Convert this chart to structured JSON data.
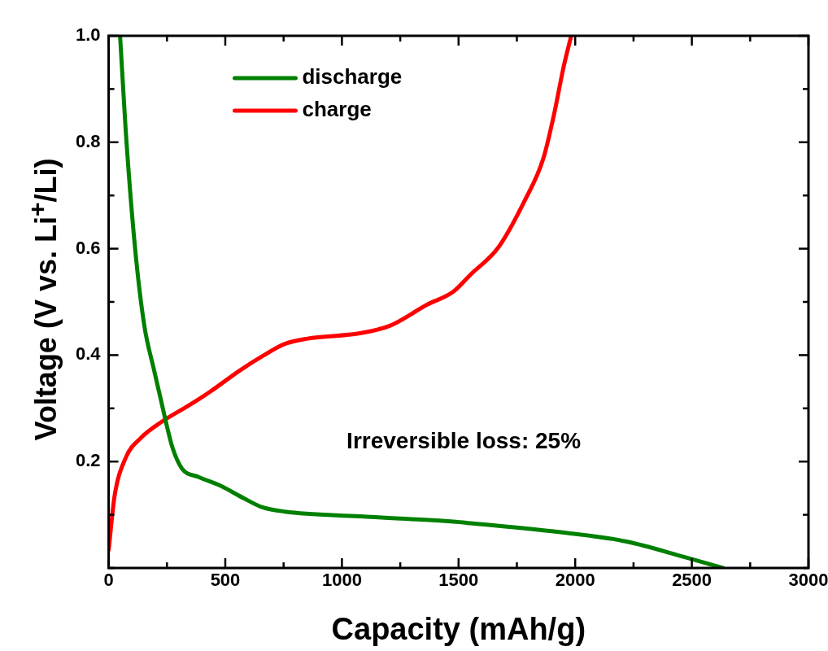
{
  "chart_data": {
    "type": "line",
    "xlabel": "Capacity (mAh/g)",
    "ylabel": "Voltage (V vs. Li$^{+}$/Li)",
    "xlim": [
      0,
      3000
    ],
    "xticks": [
      0,
      {
        "value": 250,
        "label": null
      },
      500,
      {
        "value": 750,
        "label": null
      },
      1000,
      {
        "value": 1250,
        "label": null
      },
      1500,
      {
        "value": 1750,
        "label": null
      },
      2000,
      {
        "value": 2250,
        "label": null
      },
      2500,
      {
        "value": 2750,
        "label": null
      },
      3000
    ],
    "ylim": [
      0,
      1
    ],
    "yticks": [
      {
        "value": 0,
        "label": null
      },
      {
        "value": 0.1,
        "label": null
      },
      0.2,
      {
        "value": 0.3,
        "label": null
      },
      0.4,
      {
        "value": 0.5,
        "label": null
      },
      0.6,
      {
        "value": 0.7,
        "label": null
      },
      0.8,
      {
        "value": 0.9,
        "label": null
      },
      {
        "value": 1,
        "label": "1.0"
      }
    ],
    "grid": false,
    "legend": "top left",
    "marker": "none",
    "line_style": "solid",
    "annotations": [
      "Irreversible loss: 25%"
    ],
    "series": [
      {
        "name": "discharge",
        "color": "#008000",
        "x": [
          49,
          73,
          113,
          153,
          193,
          225,
          249,
          273,
          314,
          386,
          482,
          579,
          659,
          755,
          1077,
          1477,
          1553,
          1959,
          2216,
          2473,
          2634
        ],
        "values": [
          1.0,
          0.823,
          0.602,
          0.455,
          0.375,
          0.314,
          0.268,
          0.227,
          0.187,
          0.171,
          0.154,
          0.131,
          0.114,
          0.106,
          0.097,
          0.087,
          0.084,
          0.066,
          0.05,
          0.02,
          0.0
        ]
      },
      {
        "name": "charge",
        "color": "#ff0000",
        "x": [
          0,
          25,
          73,
          137,
          225,
          338,
          434,
          562,
          659,
          755,
          852,
          1077,
          1205,
          1366,
          1477,
          1553,
          1670,
          1782,
          1863,
          1911,
          1951,
          1983
        ],
        "values": [
          0.034,
          0.134,
          0.207,
          0.244,
          0.274,
          0.304,
          0.331,
          0.371,
          0.398,
          0.421,
          0.431,
          0.441,
          0.455,
          0.495,
          0.519,
          0.552,
          0.602,
          0.689,
          0.769,
          0.856,
          0.943,
          1.0
        ]
      }
    ]
  }
}
